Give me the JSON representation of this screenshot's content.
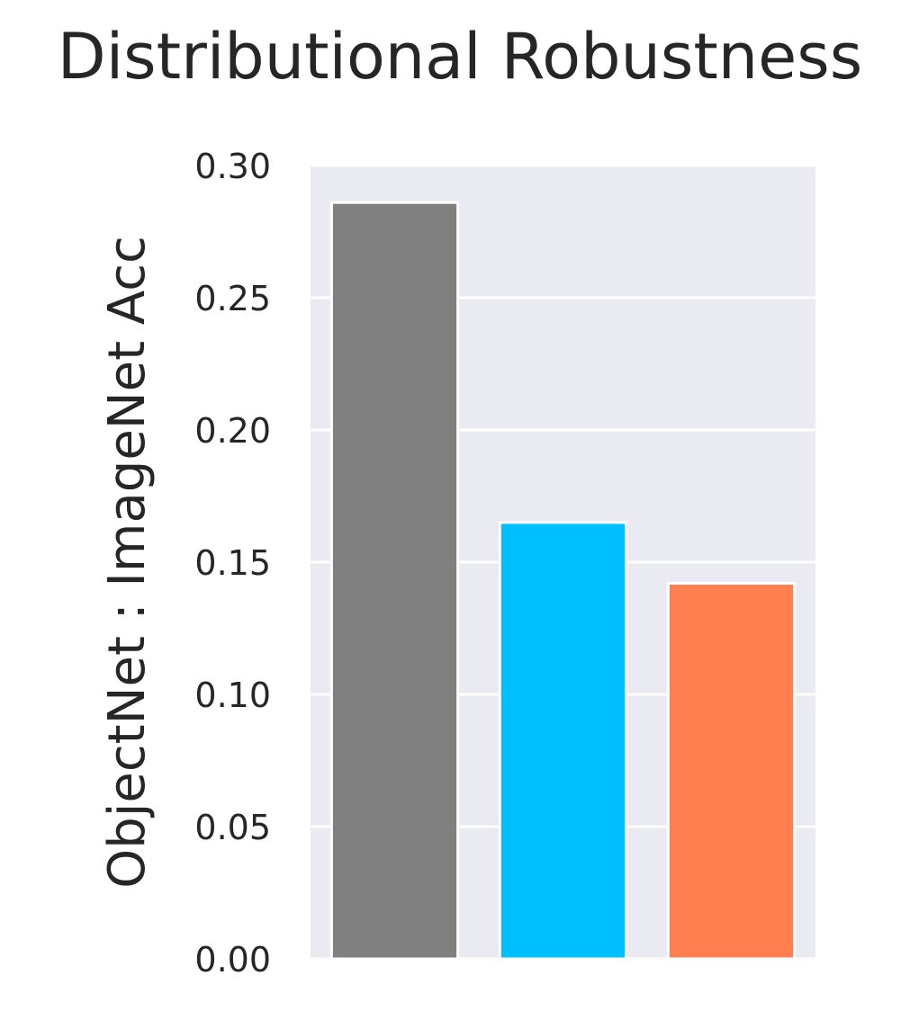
{
  "chart_data": {
    "type": "bar",
    "title": "Distributional Robustness",
    "xlabel": "",
    "ylabel": "ObjectNet : ImageNet Acc",
    "ylim": [
      0,
      0.3
    ],
    "yticks": [
      "0.00",
      "0.05",
      "0.10",
      "0.15",
      "0.20",
      "0.25",
      "0.30"
    ],
    "categories": [
      "",
      "",
      ""
    ],
    "values": [
      0.286,
      0.165,
      0.142
    ],
    "colors": [
      "#808080",
      "#00bfff",
      "#ff7f50"
    ],
    "grid": true,
    "style": {
      "plot_background": "#eaeaf2",
      "grid_color": "#ffffff",
      "edge_color": "#ffffff"
    }
  }
}
